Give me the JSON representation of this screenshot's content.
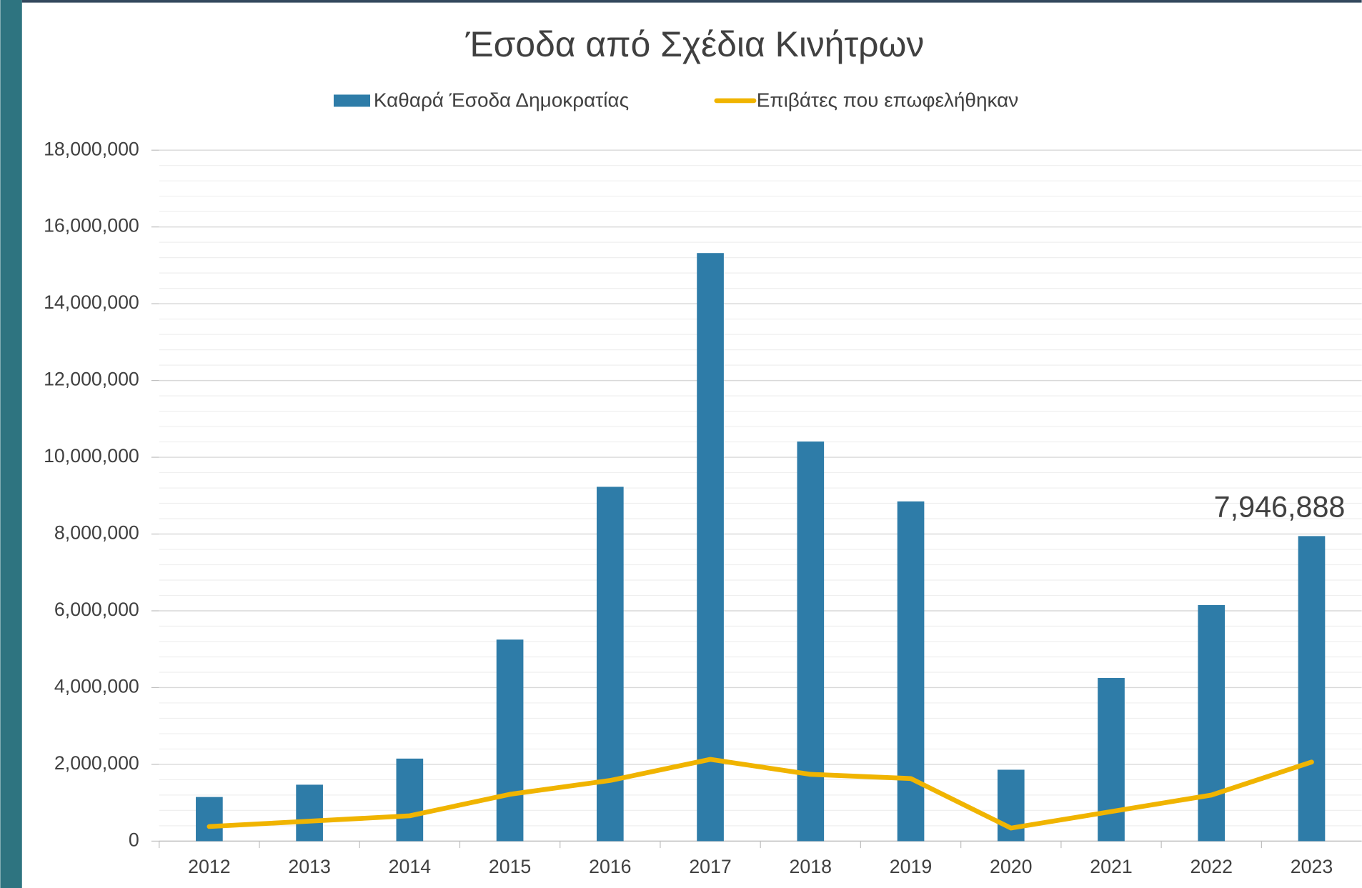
{
  "chart_data": {
    "type": "bar-line",
    "title": "Έσοδα από Σχέδια Κινήτρων",
    "categories": [
      "2012",
      "2013",
      "2014",
      "2015",
      "2016",
      "2017",
      "2018",
      "2019",
      "2020",
      "2021",
      "2022",
      "2023"
    ],
    "series": [
      {
        "name": "Καθαρά Έσοδα Δημοκρατίας",
        "type": "bar",
        "color": "#2e7ca8",
        "values": [
          1150000,
          1470000,
          2150000,
          5250000,
          9230000,
          15320000,
          10410000,
          8850000,
          1860000,
          4250000,
          6150000,
          7946888
        ],
        "value_labels": [
          null,
          null,
          null,
          null,
          null,
          null,
          null,
          null,
          null,
          null,
          null,
          "7,946,888"
        ]
      },
      {
        "name": "Επιβάτες που επωφελήθηκαν",
        "type": "line",
        "color": "#f0b400",
        "values": [
          380000,
          520000,
          660000,
          1220000,
          1580000,
          2130000,
          1740000,
          1630000,
          340000,
          770000,
          1200000,
          2060000
        ]
      }
    ],
    "ylim": [
      0,
      18000000
    ],
    "yticks": [
      0,
      {
        "value": 2000000,
        "label": "2,000,000"
      },
      {
        "value": 4000000,
        "label": "4,000,000"
      },
      {
        "value": 6000000,
        "label": "6,000,000"
      },
      {
        "value": 8000000,
        "label": "8,000,000"
      },
      {
        "value": 10000000,
        "label": "10,000,000"
      },
      {
        "value": 12000000,
        "label": "12,000,000"
      },
      {
        "value": 14000000,
        "label": "14,000,000"
      },
      {
        "value": 16000000,
        "label": "16,000,000"
      },
      {
        "value": 18000000,
        "label": "18,000,000"
      }
    ],
    "grid": true,
    "legend": "top"
  }
}
